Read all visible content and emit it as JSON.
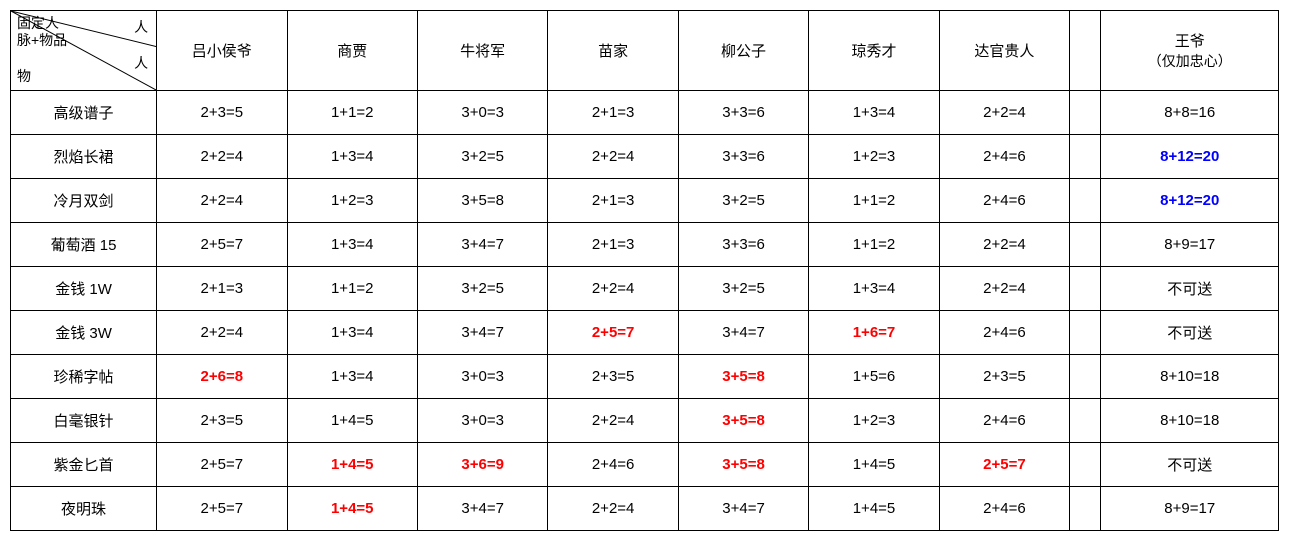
{
  "corner": {
    "top_left": "固定人\n脉+物品",
    "right1": "人",
    "right2": "人",
    "bottom": "物"
  },
  "columns": [
    {
      "label": "吕小侯爷"
    },
    {
      "label": "商贾"
    },
    {
      "label": "牛将军"
    },
    {
      "label": "苗家"
    },
    {
      "label": "柳公子"
    },
    {
      "label": "琼秀才"
    },
    {
      "label": "达官贵人"
    }
  ],
  "last_column": {
    "line1": "王爷",
    "line2": "（仅加忠心）"
  },
  "rows": [
    {
      "label": "高级谱子",
      "cells": [
        {
          "v": "2+3=5"
        },
        {
          "v": "1+1=2"
        },
        {
          "v": "3+0=3"
        },
        {
          "v": "2+1=3"
        },
        {
          "v": "3+3=6"
        },
        {
          "v": "1+3=4"
        },
        {
          "v": "2+2=4"
        }
      ],
      "last": {
        "v": "8+8=16"
      }
    },
    {
      "label": "烈焰长裙",
      "cells": [
        {
          "v": "2+2=4"
        },
        {
          "v": "1+3=4"
        },
        {
          "v": "3+2=5"
        },
        {
          "v": "2+2=4"
        },
        {
          "v": "3+3=6"
        },
        {
          "v": "1+2=3"
        },
        {
          "v": "2+4=6"
        }
      ],
      "last": {
        "v": "8+12=20",
        "hl": "blue"
      }
    },
    {
      "label": "冷月双剑",
      "cells": [
        {
          "v": "2+2=4"
        },
        {
          "v": "1+2=3"
        },
        {
          "v": "3+5=8"
        },
        {
          "v": "2+1=3"
        },
        {
          "v": "3+2=5"
        },
        {
          "v": "1+1=2"
        },
        {
          "v": "2+4=6"
        }
      ],
      "last": {
        "v": "8+12=20",
        "hl": "blue"
      }
    },
    {
      "label": "葡萄酒 15",
      "cells": [
        {
          "v": "2+5=7"
        },
        {
          "v": "1+3=4"
        },
        {
          "v": "3+4=7"
        },
        {
          "v": "2+1=3"
        },
        {
          "v": "3+3=6"
        },
        {
          "v": "1+1=2"
        },
        {
          "v": "2+2=4"
        }
      ],
      "last": {
        "v": "8+9=17"
      }
    },
    {
      "label": "金钱 1W",
      "cells": [
        {
          "v": "2+1=3"
        },
        {
          "v": "1+1=2"
        },
        {
          "v": "3+2=5"
        },
        {
          "v": "2+2=4"
        },
        {
          "v": "3+2=5"
        },
        {
          "v": "1+3=4"
        },
        {
          "v": "2+2=4"
        }
      ],
      "last": {
        "v": "不可送"
      }
    },
    {
      "label": "金钱 3W",
      "cells": [
        {
          "v": "2+2=4"
        },
        {
          "v": "1+3=4"
        },
        {
          "v": "3+4=7"
        },
        {
          "v": "2+5=7",
          "hl": "red"
        },
        {
          "v": "3+4=7"
        },
        {
          "v": "1+6=7",
          "hl": "red"
        },
        {
          "v": "2+4=6"
        }
      ],
      "last": {
        "v": "不可送"
      }
    },
    {
      "label": "珍稀字帖",
      "cells": [
        {
          "v": "2+6=8",
          "hl": "red"
        },
        {
          "v": "1+3=4"
        },
        {
          "v": "3+0=3"
        },
        {
          "v": "2+3=5"
        },
        {
          "v": "3+5=8",
          "hl": "red"
        },
        {
          "v": "1+5=6"
        },
        {
          "v": "2+3=5"
        }
      ],
      "last": {
        "v": "8+10=18"
      }
    },
    {
      "label": "白毫银针",
      "cells": [
        {
          "v": "2+3=5"
        },
        {
          "v": "1+4=5"
        },
        {
          "v": "3+0=3"
        },
        {
          "v": "2+2=4"
        },
        {
          "v": "3+5=8",
          "hl": "red"
        },
        {
          "v": "1+2=3"
        },
        {
          "v": "2+4=6"
        }
      ],
      "last": {
        "v": "8+10=18"
      }
    },
    {
      "label": "紫金匕首",
      "cells": [
        {
          "v": "2+5=7"
        },
        {
          "v": "1+4=5",
          "hl": "red"
        },
        {
          "v": "3+6=9",
          "hl": "red"
        },
        {
          "v": "2+4=6"
        },
        {
          "v": "3+5=8",
          "hl": "red"
        },
        {
          "v": "1+4=5"
        },
        {
          "v": "2+5=7",
          "hl": "red"
        }
      ],
      "last": {
        "v": "不可送"
      }
    },
    {
      "label": "夜明珠",
      "cells": [
        {
          "v": "2+5=7"
        },
        {
          "v": "1+4=5",
          "hl": "red"
        },
        {
          "v": "3+4=7"
        },
        {
          "v": "2+2=4"
        },
        {
          "v": "3+4=7"
        },
        {
          "v": "1+4=5"
        },
        {
          "v": "2+4=6"
        }
      ],
      "last": {
        "v": "8+9=17"
      }
    }
  ]
}
